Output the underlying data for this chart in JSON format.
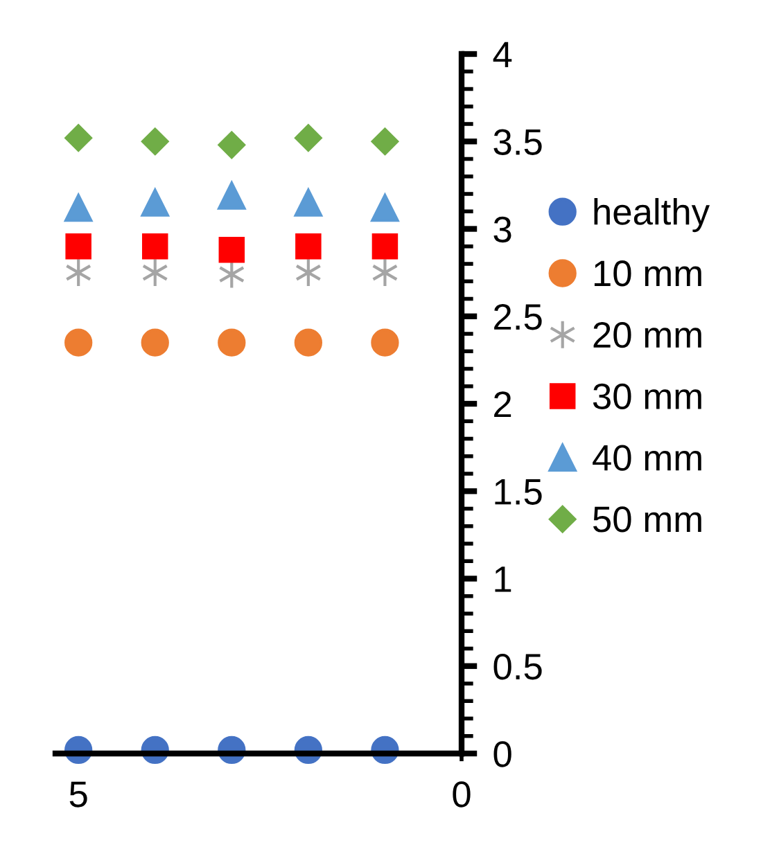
{
  "chart_data": {
    "type": "scatter",
    "x": [
      5,
      4,
      3,
      2,
      1
    ],
    "xlim": [
      5.3,
      0
    ],
    "xticks": [
      5,
      0
    ],
    "ylim": [
      0,
      4
    ],
    "yticks": [
      0,
      0.5,
      1,
      1.5,
      2,
      2.5,
      3,
      3.5,
      4
    ],
    "grid": false,
    "legend": "right",
    "series": [
      {
        "name": "healthy",
        "color": "#4472c4",
        "marker": "circle",
        "values": [
          0.02,
          0.02,
          0.02,
          0.02,
          0.02
        ]
      },
      {
        "name": "10 mm",
        "color": "#ed7d31",
        "marker": "circle",
        "values": [
          2.35,
          2.35,
          2.35,
          2.35,
          2.35
        ]
      },
      {
        "name": "20 mm",
        "color": "#a5a5a5",
        "marker": "cross",
        "values": [
          2.75,
          2.75,
          2.74,
          2.75,
          2.75
        ]
      },
      {
        "name": "30 mm",
        "color": "#ff0000",
        "marker": "square",
        "values": [
          2.9,
          2.9,
          2.88,
          2.9,
          2.9
        ]
      },
      {
        "name": "40 mm",
        "color": "#5b9bd5",
        "marker": "triangle",
        "values": [
          3.12,
          3.15,
          3.19,
          3.15,
          3.12
        ]
      },
      {
        "name": "50 mm",
        "color": "#70ad47",
        "marker": "diamond",
        "values": [
          3.52,
          3.5,
          3.48,
          3.52,
          3.5
        ]
      }
    ]
  }
}
